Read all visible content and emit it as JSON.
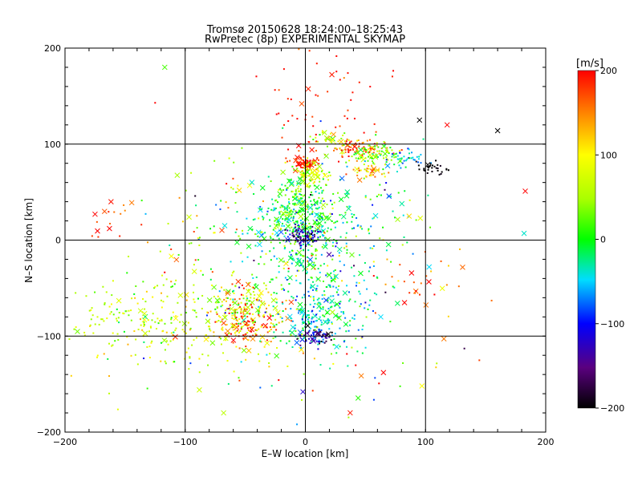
{
  "chart_data": {
    "type": "scatter",
    "title": "Tromsø 20150628 18:24:00–18:25:43",
    "subtitle": "RwPretec (8p) EXPERIMENTAL SKYMAP",
    "xlabel": "E–W location [km]",
    "ylabel": "N–S location [km]",
    "xlim": [
      -200,
      200
    ],
    "ylim": [
      -200,
      200
    ],
    "x_ticks": [
      -200,
      -100,
      0,
      100,
      200
    ],
    "y_ticks": [
      -200,
      -100,
      0,
      100,
      200
    ],
    "grid": true,
    "colorbar": {
      "label": "[m/s]",
      "range": [
        -200,
        200
      ],
      "ticks": [
        200,
        100,
        0,
        -100,
        -200
      ]
    },
    "marker_types": [
      "dot",
      "x"
    ],
    "clusters": [
      {
        "x": 0,
        "y": 80,
        "sx": 5,
        "sy": 3,
        "n": 70,
        "v": 185,
        "vs": 15
      },
      {
        "x": 5,
        "y": 70,
        "sx": 6,
        "sy": 5,
        "n": 70,
        "v": 90,
        "vs": 20
      },
      {
        "x": -5,
        "y": 40,
        "sx": 12,
        "sy": 20,
        "n": 180,
        "v": 20,
        "vs": 30
      },
      {
        "x": -5,
        "y": 20,
        "sx": 20,
        "sy": 15,
        "n": 170,
        "v": -20,
        "vs": 30
      },
      {
        "x": 0,
        "y": 5,
        "sx": 8,
        "sy": 5,
        "n": 90,
        "v": -130,
        "vs": 30
      },
      {
        "x": 0,
        "y": -20,
        "sx": 25,
        "sy": 20,
        "n": 150,
        "v": 0,
        "vs": 50
      },
      {
        "x": 45,
        "y": 95,
        "sx": 12,
        "sy": 6,
        "n": 70,
        "v": 160,
        "vs": 30
      },
      {
        "x": 60,
        "y": 90,
        "sx": 10,
        "sy": 6,
        "n": 80,
        "v": 40,
        "vs": 40
      },
      {
        "x": 85,
        "y": 85,
        "sx": 10,
        "sy": 6,
        "n": 40,
        "v": -60,
        "vs": 30
      },
      {
        "x": 105,
        "y": 75,
        "sx": 6,
        "sy": 3,
        "n": 30,
        "v": -200,
        "vs": 5
      },
      {
        "x": 55,
        "y": 70,
        "sx": 8,
        "sy": 5,
        "n": 40,
        "v": 110,
        "vs": 40
      },
      {
        "x": 20,
        "y": 105,
        "sx": 10,
        "sy": 4,
        "n": 40,
        "v": 60,
        "vs": 40
      },
      {
        "x": -50,
        "y": -70,
        "sx": 15,
        "sy": 12,
        "n": 160,
        "v": 80,
        "vs": 80
      },
      {
        "x": -45,
        "y": -90,
        "sx": 15,
        "sy": 10,
        "n": 80,
        "v": 160,
        "vs": 40
      },
      {
        "x": 5,
        "y": -75,
        "sx": 15,
        "sy": 15,
        "n": 140,
        "v": -40,
        "vs": 30
      },
      {
        "x": 10,
        "y": -100,
        "sx": 8,
        "sy": 5,
        "n": 60,
        "v": -140,
        "vs": 40
      },
      {
        "x": -90,
        "y": -90,
        "sx": 40,
        "sy": 25,
        "n": 200,
        "v": 80,
        "vs": 30
      },
      {
        "x": -150,
        "y": -80,
        "sx": 30,
        "sy": 25,
        "n": 90,
        "v": 60,
        "vs": 40
      },
      {
        "x": 20,
        "y": -60,
        "sx": 25,
        "sy": 30,
        "n": 120,
        "v": -30,
        "vs": 40
      },
      {
        "x": 40,
        "y": 20,
        "sx": 30,
        "sy": 30,
        "n": 120,
        "v": 0,
        "vs": 60
      },
      {
        "x": -60,
        "y": 0,
        "sx": 40,
        "sy": 40,
        "n": 120,
        "v": 40,
        "vs": 80
      },
      {
        "x": 10,
        "y": 140,
        "sx": 30,
        "sy": 30,
        "n": 60,
        "v": 190,
        "vs": 15
      },
      {
        "x": -160,
        "y": 20,
        "sx": 15,
        "sy": 15,
        "n": 15,
        "v": 180,
        "vs": 20
      },
      {
        "x": 90,
        "y": -40,
        "sx": 20,
        "sy": 25,
        "n": 30,
        "v": 160,
        "vs": 30
      },
      {
        "x": 0,
        "y": -130,
        "sx": 60,
        "sy": 30,
        "n": 60,
        "v": 60,
        "vs": 80
      }
    ],
    "sample_points": [
      {
        "x": -117,
        "y": 180,
        "v": 20,
        "m": "x"
      },
      {
        "x": -125,
        "y": 143,
        "v": 200,
        "m": "dot"
      },
      {
        "x": 160,
        "y": 114,
        "v": -200,
        "m": "x"
      },
      {
        "x": 183,
        "y": 51,
        "v": 200,
        "m": "x"
      },
      {
        "x": 182,
        "y": 7,
        "v": -40,
        "m": "x"
      },
      {
        "x": -175,
        "y": 27,
        "v": 200,
        "m": "x"
      },
      {
        "x": -163,
        "y": 12,
        "v": 200,
        "m": "x"
      },
      {
        "x": 155,
        "y": -63,
        "v": 160,
        "m": "dot"
      },
      {
        "x": 97,
        "y": -152,
        "v": 100,
        "m": "x"
      },
      {
        "x": 95,
        "y": 125,
        "v": -200,
        "m": "x"
      },
      {
        "x": 118,
        "y": 120,
        "v": 200,
        "m": "x"
      },
      {
        "x": -2,
        "y": -158,
        "v": -120,
        "m": "x"
      },
      {
        "x": 65,
        "y": -138,
        "v": 200,
        "m": "x"
      },
      {
        "x": 103,
        "y": -28,
        "v": -50,
        "m": "x"
      },
      {
        "x": -68,
        "y": -180,
        "v": 60,
        "m": "x"
      }
    ]
  }
}
